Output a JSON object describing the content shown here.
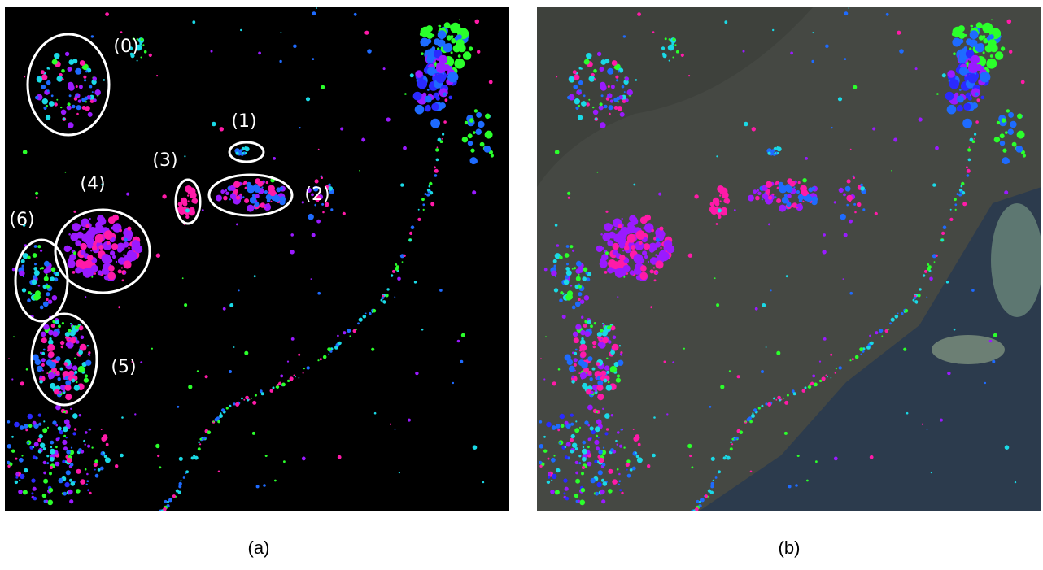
{
  "panel_a": {
    "region_labels": [
      "(0)",
      "(1)",
      "(2)",
      "(3)",
      "(4)",
      "(5)",
      "(6)"
    ]
  },
  "captions": [
    "(a)",
    "(b)"
  ]
}
